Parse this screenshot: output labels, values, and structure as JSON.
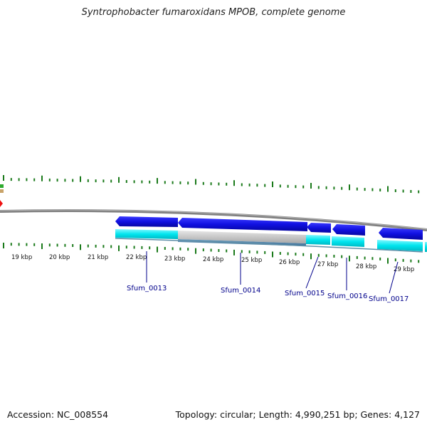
{
  "title": "Syntrophobacter fumaroxidans MPOB, complete genome",
  "footer": {
    "accession": "Accession: NC_008554",
    "summary": "Topology: circular; Length: 4,990,251 bp; Genes: 4,127"
  },
  "colors": {
    "gene_arrow": "#1010e0",
    "cds_band": "#00e5ee",
    "backbone": "#808080",
    "tick": "#1a7a1a",
    "label": "#00008b"
  },
  "axis": {
    "labels": [
      "19 kbp",
      "20 kbp",
      "21 kbp",
      "22 kbp",
      "23 kbp",
      "24 kbp",
      "25 kbp",
      "26 kbp",
      "27 kbp",
      "28 kbp",
      "29 kbp"
    ]
  },
  "genes": [
    {
      "name": "Sfum_0013"
    },
    {
      "name": "Sfum_0014"
    },
    {
      "name": "Sfum_0015"
    },
    {
      "name": "Sfum_0016"
    },
    {
      "name": "Sfum_0017"
    }
  ]
}
